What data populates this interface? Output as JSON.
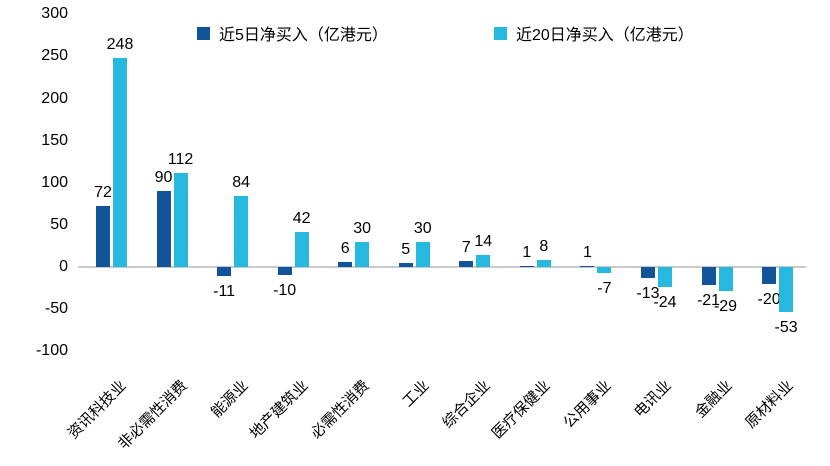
{
  "chart_data": {
    "type": "bar",
    "title": "",
    "categories": [
      "资讯科技业",
      "非必需性消费",
      "能源业",
      "地产建筑业",
      "必需性消费",
      "工业",
      "综合企业",
      "医疗保健业",
      "公用事业",
      "电讯业",
      "金融业",
      "原材料业"
    ],
    "series": [
      {
        "name": "近5日净买入（亿港元）",
        "color": "#11549A",
        "values": [
          72,
          90,
          -11,
          -10,
          6,
          5,
          7,
          1,
          1,
          -13,
          -21,
          -20
        ]
      },
      {
        "name": "近20日净买入（亿港元）",
        "color": "#26B8DF",
        "values": [
          248,
          112,
          84,
          42,
          30,
          30,
          14,
          8,
          -7,
          -24,
          -29,
          -53
        ]
      }
    ],
    "ylabel": "",
    "xlabel": "",
    "ylim": [
      -100,
      300
    ],
    "yticks": [
      300,
      250,
      200,
      150,
      100,
      50,
      0,
      -50,
      -100
    ],
    "grid": false,
    "legend_position": "top",
    "data_labels": true
  },
  "colors": {
    "background": "#FFFFFF",
    "zero_line": "#C9C9C9",
    "text": "#000000"
  }
}
